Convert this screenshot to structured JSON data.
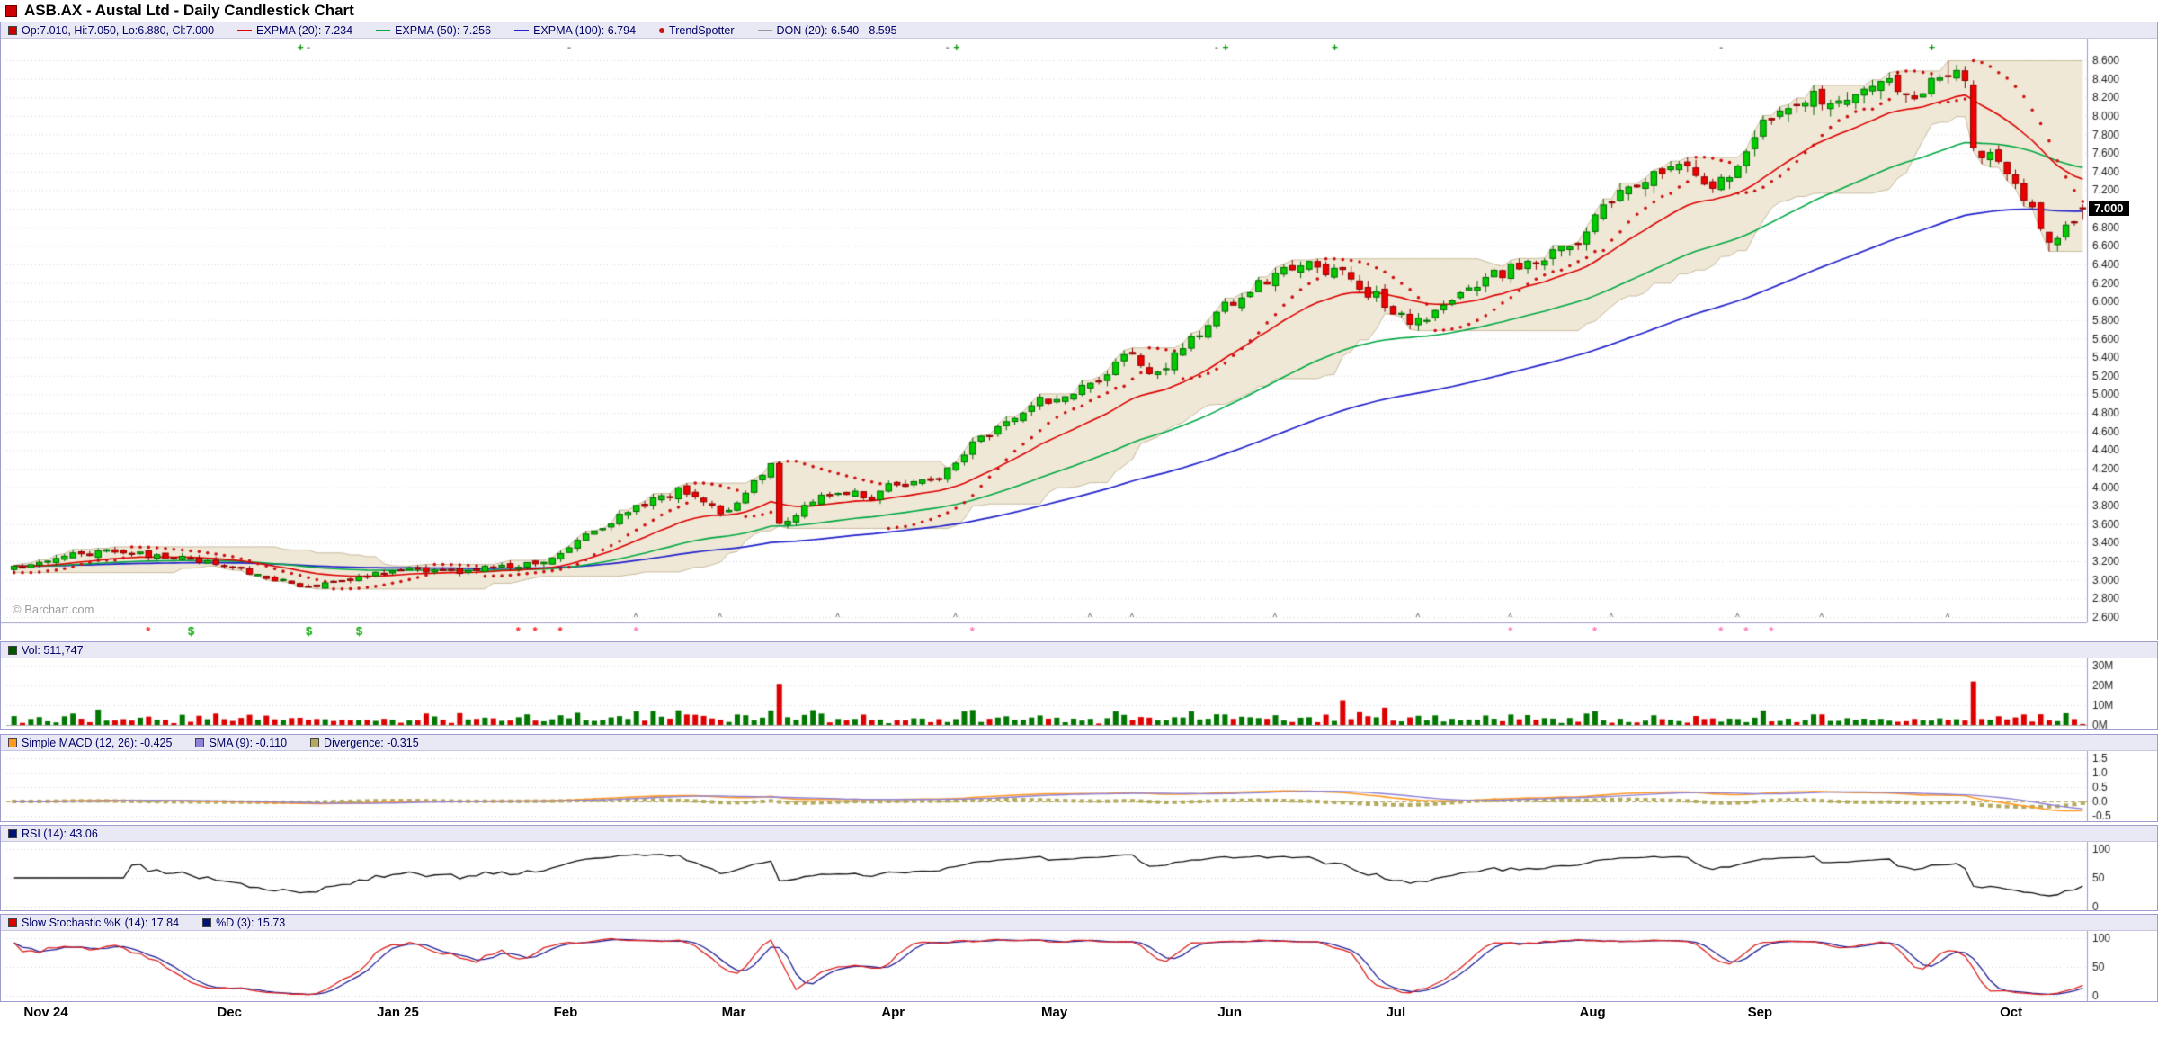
{
  "title": "ASB.AX - Austal Ltd - Daily Candlestick Chart",
  "watermark": "© Barchart.com",
  "price_badge": "7.000",
  "main_legend": [
    {
      "swatch": "square",
      "color": "#cc0000",
      "label": "Op:7.010, Hi:7.050, Lo:6.880, Cl:7.000"
    },
    {
      "swatch": "line",
      "color": "#dd0000",
      "label": "EXPMA (20): 7.234"
    },
    {
      "swatch": "line",
      "color": "#00a843",
      "label": "EXPMA (50): 7.256"
    },
    {
      "swatch": "line",
      "color": "#2222cc",
      "label": "EXPMA (100): 6.794"
    },
    {
      "swatch": "dot",
      "color": "#cc1111",
      "label": "TrendSpotter"
    },
    {
      "swatch": "line",
      "color": "#999999",
      "label": "DON (20): 6.540 - 8.595"
    }
  ],
  "volume_legend": [
    {
      "swatch": "square",
      "color": "#005500",
      "label": "Vol: 511,747"
    }
  ],
  "macd_legend": [
    {
      "swatch": "square",
      "color": "#ff9922",
      "label": "Simple MACD (12, 26): -0.425"
    },
    {
      "swatch": "square",
      "color": "#8f82d8",
      "label": "SMA (9): -0.110"
    },
    {
      "swatch": "square",
      "color": "#b4aa5e",
      "label": "Divergence: -0.315"
    }
  ],
  "rsi_legend": [
    {
      "swatch": "square",
      "color": "#001177",
      "label": "RSI (14): 43.06"
    }
  ],
  "stoch_legend": [
    {
      "swatch": "square",
      "color": "#dd0000",
      "label": "Slow Stochastic %K (14): 17.84"
    },
    {
      "swatch": "square",
      "color": "#001177",
      "label": "%D (3): 15.73"
    }
  ],
  "x_axis": {
    "months": [
      {
        "label": "Nov 24",
        "day": 2
      },
      {
        "label": "Dec",
        "day": 25
      },
      {
        "label": "Jan 25",
        "day": 44
      },
      {
        "label": "Feb",
        "day": 65
      },
      {
        "label": "Mar",
        "day": 85
      },
      {
        "label": "Apr",
        "day": 104
      },
      {
        "label": "May",
        "day": 123
      },
      {
        "label": "Jun",
        "day": 144
      },
      {
        "label": "Jul",
        "day": 164
      },
      {
        "label": "Aug",
        "day": 187
      },
      {
        "label": "Sep",
        "day": 207
      },
      {
        "label": "Oct",
        "day": 237
      }
    ]
  },
  "axes": {
    "price": {
      "min": 2.6,
      "max": 8.6,
      "step": 0.2
    },
    "volume": {
      "ticks": [
        0,
        10,
        20,
        30
      ],
      "unit": "M"
    },
    "macd": {
      "min": -0.5,
      "max": 1.5,
      "ticks": [
        1.5,
        1.0,
        0.5,
        0.0,
        -0.5
      ]
    },
    "rsi": {
      "ticks": [
        100,
        50,
        0
      ]
    },
    "stoch": {
      "ticks": [
        100,
        50,
        0
      ]
    }
  },
  "chart_data": {
    "type": "candlestick",
    "symbol": "ASB.AX",
    "period": "daily",
    "days": 247,
    "last_bar": {
      "open": 7.01,
      "high": 7.05,
      "low": 6.88,
      "close": 7.0,
      "volume_label": "511,747"
    },
    "indicators": {
      "expma20": 7.234,
      "expma50": 7.256,
      "expma100": 6.794,
      "don20_low": 6.54,
      "don20_high": 8.595,
      "macd": -0.425,
      "macd_sma9": -0.11,
      "macd_divergence": -0.315,
      "rsi14": 43.06,
      "stoch_k14": 17.84,
      "stoch_d3": 15.73
    },
    "close_anchors": [
      [
        0,
        3.12
      ],
      [
        4,
        3.22
      ],
      [
        8,
        3.28
      ],
      [
        12,
        3.31
      ],
      [
        16,
        3.27
      ],
      [
        20,
        3.24
      ],
      [
        24,
        3.18
      ],
      [
        28,
        3.08
      ],
      [
        32,
        2.98
      ],
      [
        35,
        2.92
      ],
      [
        38,
        2.97
      ],
      [
        41,
        3.04
      ],
      [
        44,
        3.08
      ],
      [
        48,
        3.12
      ],
      [
        53,
        3.1
      ],
      [
        58,
        3.14
      ],
      [
        62,
        3.18
      ],
      [
        65,
        3.28
      ],
      [
        67,
        3.42
      ],
      [
        70,
        3.58
      ],
      [
        73,
        3.74
      ],
      [
        76,
        3.86
      ],
      [
        79,
        3.96
      ],
      [
        81,
        3.88
      ],
      [
        84,
        3.74
      ],
      [
        86,
        3.8
      ],
      [
        88,
        4.05
      ],
      [
        90,
        4.28
      ],
      [
        91,
        3.58
      ],
      [
        93,
        3.72
      ],
      [
        96,
        3.92
      ],
      [
        99,
        3.96
      ],
      [
        102,
        3.88
      ],
      [
        104,
        4.02
      ],
      [
        107,
        4.05
      ],
      [
        110,
        4.12
      ],
      [
        112,
        4.28
      ],
      [
        114,
        4.45
      ],
      [
        117,
        4.62
      ],
      [
        120,
        4.8
      ],
      [
        122,
        4.92
      ],
      [
        124,
        4.98
      ],
      [
        127,
        5.05
      ],
      [
        129,
        5.12
      ],
      [
        131,
        5.32
      ],
      [
        133,
        5.45
      ],
      [
        135,
        5.22
      ],
      [
        137,
        5.3
      ],
      [
        139,
        5.5
      ],
      [
        141,
        5.68
      ],
      [
        143,
        5.88
      ],
      [
        145,
        6.02
      ],
      [
        147,
        6.12
      ],
      [
        149,
        6.22
      ],
      [
        151,
        6.32
      ],
      [
        154,
        6.38
      ],
      [
        156,
        6.3
      ],
      [
        158,
        6.38
      ],
      [
        160,
        6.15
      ],
      [
        162,
        6.05
      ],
      [
        164,
        5.92
      ],
      [
        166,
        5.78
      ],
      [
        168,
        5.85
      ],
      [
        170,
        6.0
      ],
      [
        172,
        6.1
      ],
      [
        174,
        6.18
      ],
      [
        176,
        6.28
      ],
      [
        179,
        6.38
      ],
      [
        182,
        6.48
      ],
      [
        184,
        6.55
      ],
      [
        186,
        6.62
      ],
      [
        188,
        6.88
      ],
      [
        190,
        7.08
      ],
      [
        192,
        7.22
      ],
      [
        194,
        7.35
      ],
      [
        196,
        7.42
      ],
      [
        198,
        7.48
      ],
      [
        200,
        7.3
      ],
      [
        202,
        7.18
      ],
      [
        204,
        7.4
      ],
      [
        206,
        7.65
      ],
      [
        208,
        7.88
      ],
      [
        210,
        8.02
      ],
      [
        212,
        8.15
      ],
      [
        214,
        8.22
      ],
      [
        216,
        8.12
      ],
      [
        218,
        8.25
      ],
      [
        220,
        8.35
      ],
      [
        222,
        8.45
      ],
      [
        224,
        8.3
      ],
      [
        226,
        8.2
      ],
      [
        228,
        8.38
      ],
      [
        230,
        8.5
      ],
      [
        232,
        8.42
      ],
      [
        233,
        7.7
      ],
      [
        235,
        7.55
      ],
      [
        237,
        7.42
      ],
      [
        239,
        7.15
      ],
      [
        241,
        6.85
      ],
      [
        242,
        6.68
      ],
      [
        243,
        6.72
      ],
      [
        244,
        6.82
      ],
      [
        245,
        6.9
      ],
      [
        246,
        7.0
      ]
    ],
    "high_overrides": {
      "230": 8.595
    },
    "low_overrides": {
      "242": 6.54
    },
    "volume_spikes": [
      [
        91,
        20.8
      ],
      [
        95,
        7.5
      ],
      [
        113,
        6.8
      ],
      [
        158,
        12.5
      ],
      [
        233,
        22.0
      ]
    ],
    "markers": {
      "top_plus_days": [
        34,
        112,
        144,
        157,
        228
      ],
      "top_minus_days": [
        35,
        66,
        111,
        143,
        203
      ],
      "caret_days": [
        74,
        84,
        98,
        112,
        128,
        133,
        150,
        167,
        178,
        190,
        205,
        215,
        230
      ],
      "strip": [
        {
          "day": 16,
          "sym": "*",
          "color": "#ff2222"
        },
        {
          "day": 21,
          "sym": "$",
          "color": "#00aa00"
        },
        {
          "day": 35,
          "sym": "$",
          "color": "#00aa00"
        },
        {
          "day": 41,
          "sym": "$",
          "color": "#00aa00"
        },
        {
          "day": 60,
          "sym": "*",
          "color": "#ff2222"
        },
        {
          "day": 62,
          "sym": "*",
          "color": "#ff2222"
        },
        {
          "day": 65,
          "sym": "*",
          "color": "#ff2222"
        },
        {
          "day": 74,
          "sym": "*",
          "color": "#ff77bb"
        },
        {
          "day": 114,
          "sym": "*",
          "color": "#ff77bb"
        },
        {
          "day": 178,
          "sym": "*",
          "color": "#ff77bb"
        },
        {
          "day": 188,
          "sym": "*",
          "color": "#ff77bb"
        },
        {
          "day": 203,
          "sym": "*",
          "color": "#ff77bb"
        },
        {
          "day": 206,
          "sym": "*",
          "color": "#ff77bb"
        },
        {
          "day": 209,
          "sym": "*",
          "color": "#ff77bb"
        }
      ]
    }
  },
  "colors": {
    "up": "#00cc00",
    "up_border": "#006600",
    "down": "#ee0000",
    "down_border": "#880000",
    "expma20": "#dd0000",
    "expma50": "#00a843",
    "expma100": "#2222cc",
    "trendspotter": "#cc1111",
    "donchian_fill": "#f0e8d6",
    "donchian_border": "#c9bda0",
    "vol_up": "#007700",
    "vol_down": "#dd0000",
    "macd": "#ff9922",
    "macd_signal": "#8f82d8",
    "divergence": "#b4aa5e",
    "rsi": "#111111",
    "stoch_k": "#dd2222",
    "stoch_d": "#222299",
    "grid": "#d6d6d6",
    "panel_border": "#9c9cce",
    "axis_text": "#222222"
  }
}
